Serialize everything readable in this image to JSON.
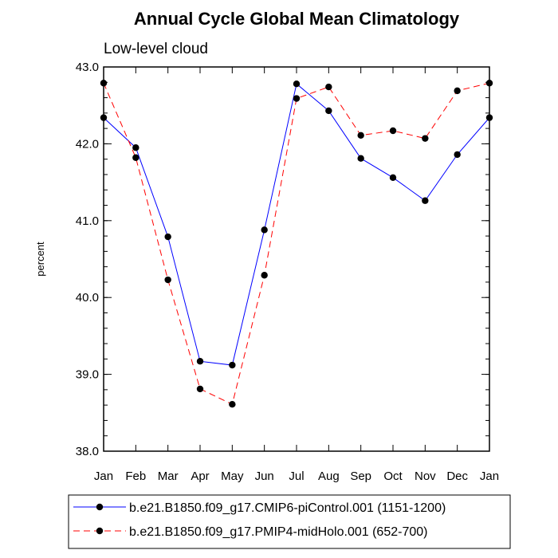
{
  "chart_data": {
    "type": "line",
    "title": "Annual Cycle Global Mean Climatology",
    "subtitle": "Low-level cloud",
    "xlabel": "",
    "ylabel": "percent",
    "categories": [
      "Jan",
      "Feb",
      "Mar",
      "Apr",
      "May",
      "Jun",
      "Jul",
      "Aug",
      "Sep",
      "Oct",
      "Nov",
      "Dec",
      "Jan"
    ],
    "ylim": [
      38.0,
      43.0
    ],
    "yticks": [
      "38.0",
      "39.0",
      "40.0",
      "41.0",
      "42.0",
      "43.0"
    ],
    "legend_position": "bottom",
    "series": [
      {
        "name": "b.e21.B1850.f09_g17.CMIP6-piControl.001 (1151-1200)",
        "color": "#0000ff",
        "dash": "solid",
        "values": [
          42.34,
          41.95,
          40.79,
          39.17,
          39.12,
          40.88,
          42.78,
          42.43,
          41.81,
          41.56,
          41.26,
          41.86,
          42.34
        ]
      },
      {
        "name": "b.e21.B1850.f09_g17.PMIP4-midHolo.001 (652-700)",
        "color": "#ff0000",
        "dash": "dashed",
        "values": [
          42.79,
          41.82,
          40.23,
          38.81,
          38.61,
          40.29,
          42.59,
          42.74,
          42.11,
          42.17,
          42.07,
          42.69,
          42.79
        ]
      }
    ]
  }
}
